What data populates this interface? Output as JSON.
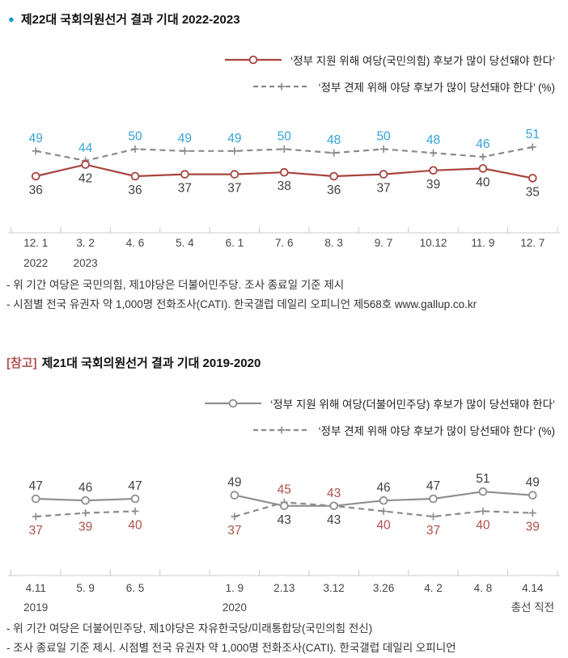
{
  "colors": {
    "title_bullet": "#1C9AD6",
    "ref_tag": "#B05550",
    "blue_label": "#33A3D9",
    "red_line": "#A8443E",
    "red_label": "#B0514B",
    "gray_line": "#8F8F8F",
    "dash_gray": "#8A8A8A",
    "black_label": "#3F3F3F",
    "axis": "#CCCCCC",
    "tick": "#C8C8C8",
    "xlabel": "#444444"
  },
  "section1": {
    "bullet": "●",
    "title": "제22대 국회의원선거 결과 기대 2022-2023",
    "legend": [
      {
        "label": "‘정부 지원 위해 여당(국민의힘) 후보가 많이 당선돼야 한다’"
      },
      {
        "label": "‘정부 견제 위해 야당 후보가 많이 당선돼야 한다’ (%)"
      }
    ],
    "footnotes": [
      "- 위 기간 여당은 국민의힘, 제1야당은 더불어민주당. 조사 종료일 기준 제시",
      "- 시점별 전국 유권자 약 1,000명 전화조사(CATI). 한국갤럽 데일리 오피니언 제568호 www.gallup.co.kr"
    ]
  },
  "section2": {
    "ref_tag": "[참고]",
    "title": "제21대 국회의원선거 결과 기대 2019-2020",
    "legend": [
      {
        "label": "‘정부 지원 위해 여당(더불어민주당) 후보가 많이 당선돼야 한다’"
      },
      {
        "label": "‘정부 견제 위해 야당 후보가 많이 당선돼야 한다’ (%)"
      }
    ],
    "footnotes": [
      "- 위 기간 여당은 더불어민주당, 제1야당은 자유한국당/미래통합당(국민의힘 전신)",
      "- 조사 종료일 기준 제시. 시점별 전국 유권자 약 1,000명 전화조사(CATI). 한국갤럽 데일리 오피니언"
    ]
  },
  "chart_data": [
    {
      "type": "line",
      "title": "제22대 국회의원선거 결과 기대 2022-2023",
      "categories": [
        "12. 1",
        "3. 2",
        "4. 6",
        "5. 4",
        "6. 1",
        "7. 6",
        "8. 3",
        "9. 7",
        "10.12",
        "11. 9",
        "12. 7"
      ],
      "sublabels": [
        "2022",
        "2023",
        "",
        "",
        "",
        "",
        "",
        "",
        "",
        "",
        ""
      ],
      "ylim": [
        30,
        56
      ],
      "grid": false,
      "legend_position": "top-right",
      "series": [
        {
          "name": "‘정부 견제 위해 야당 후보가 많이 당선돼야 한다’ (%)",
          "values": [
            49,
            44,
            50,
            49,
            49,
            50,
            48,
            50,
            48,
            46,
            51
          ],
          "line": "dashed",
          "marker": "plus",
          "color_key": "dash_gray",
          "label_color_key": "blue_label",
          "label_side": "above",
          "label_side_overrides": {}
        },
        {
          "name": "‘정부 지원 위해 여당(국민의힘) 후보가 많이 당선돼야 한다’",
          "values": [
            36,
            42,
            36,
            37,
            37,
            38,
            36,
            37,
            39,
            40,
            35
          ],
          "line": "solid",
          "marker": "circle",
          "color_key": "red_line",
          "label_color_key": "black_label",
          "label_side": "below",
          "label_side_overrides": {}
        }
      ]
    },
    {
      "type": "line",
      "title": "제21대 국회의원선거 결과 기대 2019-2020",
      "categories": [
        "4.11",
        "5. 9",
        "6. 5",
        "",
        "1. 9",
        "2.13",
        "3.12",
        "3.26",
        "4. 2",
        "4. 8",
        "4.14"
      ],
      "sublabels": [
        "2019",
        "",
        "",
        "",
        "2020",
        "",
        "",
        "",
        "",
        "",
        "총선 직전"
      ],
      "ylim": [
        30,
        56
      ],
      "grid": false,
      "legend_position": "top-right",
      "series": [
        {
          "name": "‘정부 견제 위해 야당 후보가 많이 당선돼야 한다’ (%)",
          "values": [
            37,
            39,
            40,
            null,
            37,
            45,
            43,
            40,
            37,
            40,
            39
          ],
          "line": "dashed",
          "marker": "plus",
          "color_key": "dash_gray",
          "label_color_key": "red_label",
          "label_side": "below",
          "label_side_overrides": {
            "5": "above",
            "6": "above"
          }
        },
        {
          "name": "‘정부 지원 위해 여당(더불어민주당) 후보가 많이 당선돼야 한다’",
          "values": [
            47,
            46,
            47,
            null,
            49,
            43,
            43,
            46,
            47,
            51,
            49
          ],
          "line": "solid",
          "marker": "circle",
          "color_key": "gray_line",
          "label_color_key": "black_label",
          "label_side": "above",
          "label_side_overrides": {
            "5": "below",
            "6": "below"
          }
        }
      ]
    }
  ]
}
